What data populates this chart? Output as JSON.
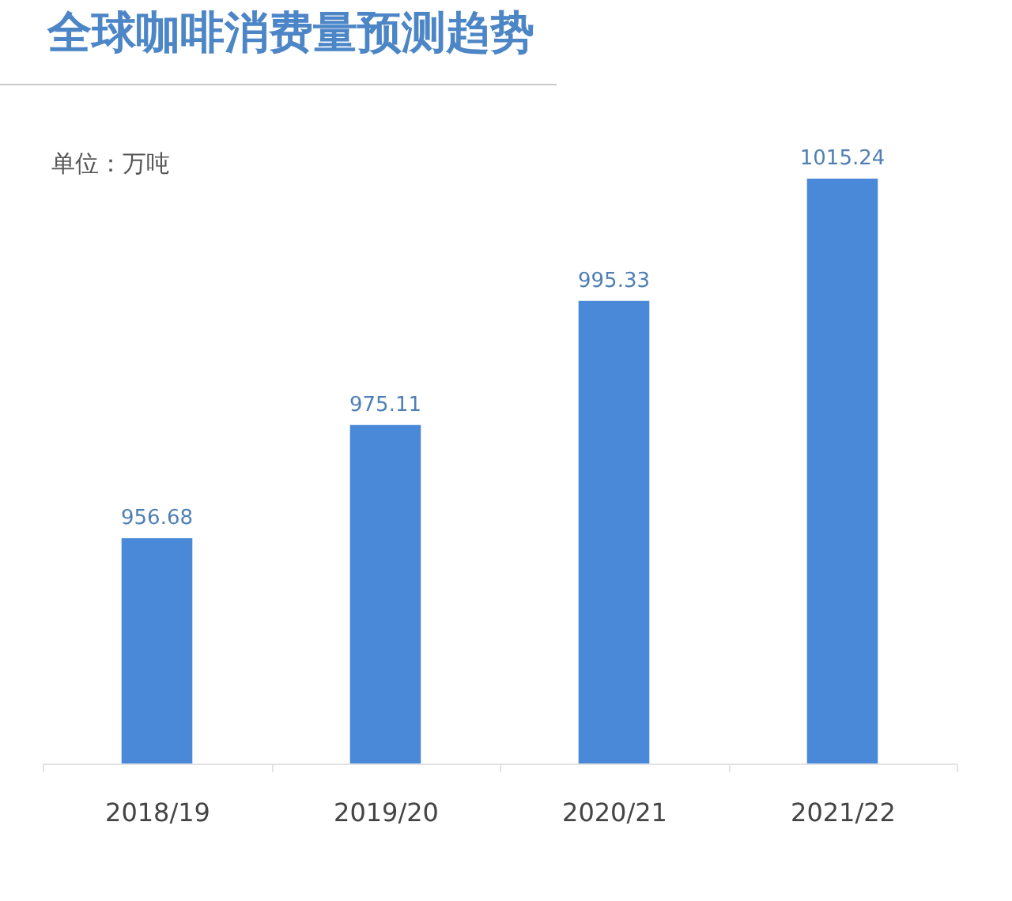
{
  "chart_data": {
    "type": "bar",
    "title": "全球咖啡消费量预测趋势",
    "ylabel": "单位：万吨",
    "categories": [
      "2018/19",
      "2019/20",
      "2020/21",
      "2021/22"
    ],
    "values": [
      956.68,
      975.11,
      995.33,
      1015.24
    ],
    "color": "#4a88d8",
    "ylim": [
      920,
      1015.24
    ],
    "data_labels": true,
    "tick_labels": "x"
  }
}
